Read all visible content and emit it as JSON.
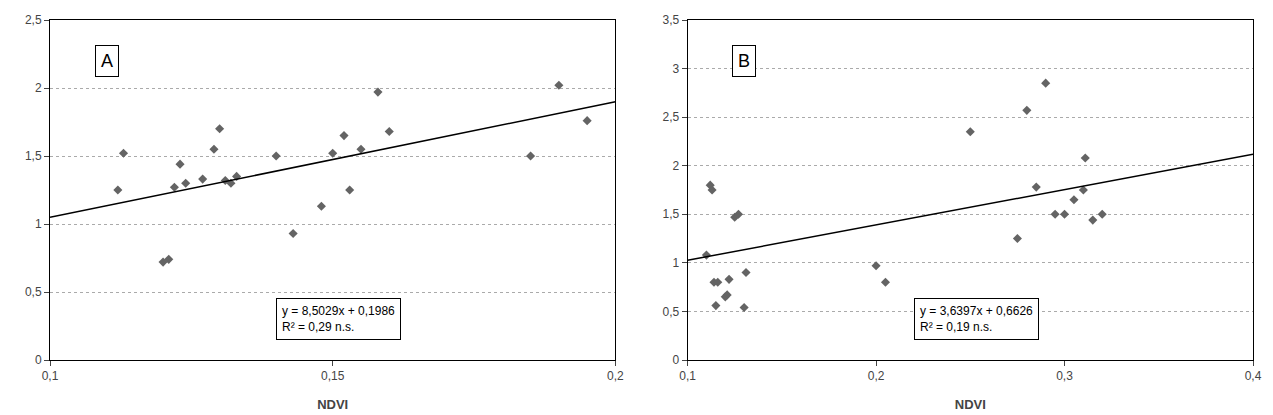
{
  "chart_data": [
    {
      "type": "scatter",
      "xlabel": "NDVI",
      "xlim": [
        0.1,
        0.2
      ],
      "ylim": [
        0,
        2.5
      ],
      "xticks": [
        {
          "value": 0.1,
          "label": "0,1"
        },
        {
          "value": 0.15,
          "label": "0,15"
        },
        {
          "value": 0.2,
          "label": "0,2"
        }
      ],
      "yticks": [
        0,
        {
          "value": 0.5,
          "label": "0,5"
        },
        1,
        {
          "value": 1.5,
          "label": "1,5"
        },
        2,
        {
          "value": 2.5,
          "label": "2,5"
        }
      ],
      "grid": "y",
      "annotations": [
        "A",
        "y = 8,5029x + 0,1986",
        "R² = 0,29 n.s."
      ],
      "series": [
        {
          "type": "scatter",
          "marker": "diamond",
          "color": "#646464",
          "x": [
            0.112,
            0.113,
            0.12,
            0.121,
            0.122,
            0.123,
            0.124,
            0.127,
            0.129,
            0.13,
            0.131,
            0.132,
            0.133,
            0.14,
            0.143,
            0.148,
            0.15,
            0.152,
            0.153,
            0.155,
            0.158,
            0.16,
            0.185,
            0.19,
            0.195
          ],
          "values": [
            1.25,
            1.52,
            0.72,
            0.74,
            1.27,
            1.44,
            1.3,
            1.33,
            1.55,
            1.7,
            1.32,
            1.3,
            1.35,
            1.5,
            0.93,
            1.13,
            1.52,
            1.65,
            1.25,
            1.55,
            1.97,
            1.68,
            1.5,
            2.02,
            1.76
          ]
        },
        {
          "type": "line",
          "line_style": "solid",
          "color": "#000000",
          "x": [
            0.1,
            0.2
          ],
          "values": [
            1.04889,
            1.89918
          ]
        }
      ]
    },
    {
      "type": "scatter",
      "xlabel": "NDVI",
      "xlim": [
        0.1,
        0.4
      ],
      "ylim": [
        0,
        3.5
      ],
      "xticks": [
        {
          "value": 0.1,
          "label": "0,1"
        },
        {
          "value": 0.2,
          "label": "0,2"
        },
        {
          "value": 0.3,
          "label": "0,3"
        },
        {
          "value": 0.4,
          "label": "0,4"
        }
      ],
      "yticks": [
        0,
        {
          "value": 0.5,
          "label": "0,5"
        },
        1,
        {
          "value": 1.5,
          "label": "1,5"
        },
        2,
        {
          "value": 2.5,
          "label": "2,5"
        },
        3,
        {
          "value": 3.5,
          "label": "3,5"
        }
      ],
      "grid": "y",
      "annotations": [
        "B",
        "y = 3,6397x + 0,6626",
        "R² = 0,19 n.s."
      ],
      "series": [
        {
          "type": "scatter",
          "marker": "diamond",
          "color": "#646464",
          "x": [
            0.11,
            0.112,
            0.113,
            0.114,
            0.115,
            0.116,
            0.12,
            0.121,
            0.122,
            0.125,
            0.127,
            0.13,
            0.131,
            0.2,
            0.205,
            0.25,
            0.275,
            0.28,
            0.285,
            0.29,
            0.295,
            0.3,
            0.305,
            0.31,
            0.311,
            0.315,
            0.32
          ],
          "values": [
            1.08,
            1.8,
            1.75,
            0.8,
            0.56,
            0.8,
            0.65,
            0.67,
            0.83,
            1.47,
            1.5,
            0.54,
            0.9,
            0.97,
            0.8,
            2.35,
            1.25,
            2.57,
            1.78,
            2.85,
            1.5,
            1.5,
            1.65,
            1.75,
            2.08,
            1.44,
            1.5
          ]
        },
        {
          "type": "line",
          "line_style": "solid",
          "color": "#000000",
          "x": [
            0.1,
            0.4
          ],
          "values": [
            1.02657,
            2.11848
          ]
        }
      ]
    }
  ]
}
